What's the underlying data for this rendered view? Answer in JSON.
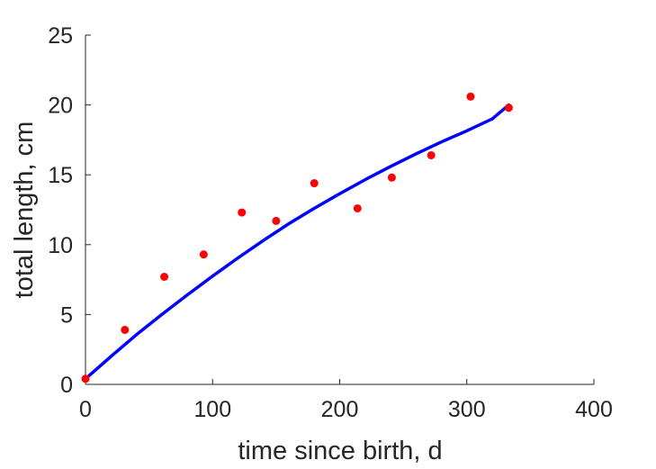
{
  "chart_data": {
    "type": "scatter",
    "title": "",
    "xlabel": "time since birth, d",
    "ylabel": "total length, cm",
    "xlim": [
      0,
      400
    ],
    "ylim": [
      0,
      25
    ],
    "xticks": [
      0,
      100,
      200,
      300,
      400
    ],
    "yticks": [
      0,
      5,
      10,
      15,
      20,
      25
    ],
    "grid": false,
    "series": [
      {
        "kind": "scatter",
        "color": "#ff0000",
        "points": [
          [
            0,
            0.4
          ],
          [
            31,
            3.9
          ],
          [
            62,
            7.7
          ],
          [
            93,
            9.3
          ],
          [
            123,
            12.3
          ],
          [
            150,
            11.7
          ],
          [
            180,
            14.4
          ],
          [
            214,
            12.6
          ],
          [
            241,
            14.8
          ],
          [
            272,
            16.4
          ],
          [
            303,
            20.6
          ],
          [
            333,
            19.8
          ]
        ]
      },
      {
        "kind": "line",
        "color": "#0000ff",
        "points": [
          [
            0,
            0.4
          ],
          [
            20,
            2.0
          ],
          [
            40,
            3.55
          ],
          [
            60,
            5.0
          ],
          [
            80,
            6.4
          ],
          [
            100,
            7.75
          ],
          [
            120,
            9.05
          ],
          [
            140,
            10.3
          ],
          [
            160,
            11.5
          ],
          [
            180,
            12.6
          ],
          [
            200,
            13.65
          ],
          [
            220,
            14.65
          ],
          [
            240,
            15.6
          ],
          [
            260,
            16.5
          ],
          [
            280,
            17.35
          ],
          [
            300,
            18.15
          ],
          [
            320,
            19.0
          ],
          [
            333,
            20.0
          ]
        ]
      }
    ]
  }
}
